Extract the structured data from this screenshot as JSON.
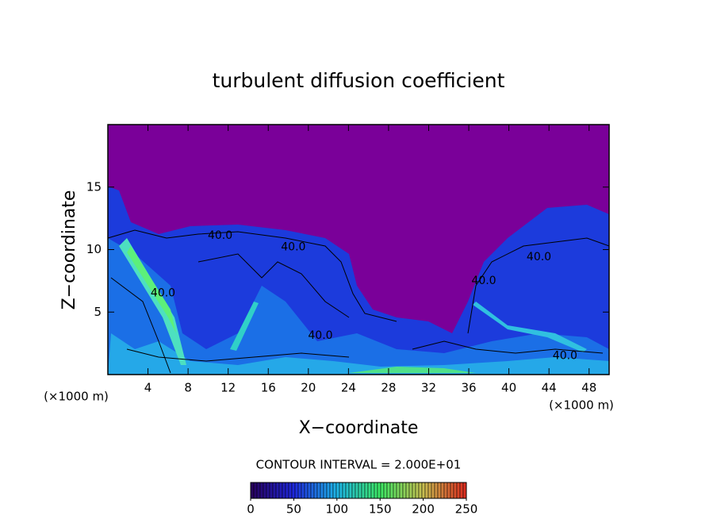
{
  "chart_data": {
    "type": "contour",
    "title": "turbulent diffusion coefficient",
    "xlabel": "X−coordinate",
    "ylabel": "Z−coordinate",
    "xunit": "(×1000 m)",
    "yunit": "(×1000 m)",
    "xlim": [
      0,
      50
    ],
    "ylim": [
      0,
      20
    ],
    "xticks": [
      4,
      8,
      12,
      16,
      20,
      24,
      28,
      32,
      36,
      40,
      44,
      48
    ],
    "yticks": [
      5,
      10,
      15
    ],
    "contour_interval": "CONTOUR INTERVAL = 2.000E+01",
    "clim": [
      0,
      250
    ],
    "cticks": [
      0,
      50,
      100,
      150,
      200,
      250
    ],
    "contour_labels": [
      {
        "text": "40.0",
        "x": 11.2,
        "y": 11.1
      },
      {
        "text": "40.0",
        "x": 18.5,
        "y": 10.2
      },
      {
        "text": "40.0",
        "x": 43.0,
        "y": 9.4
      },
      {
        "text": "40.0",
        "x": 21.2,
        "y": 3.1
      },
      {
        "text": "40.0",
        "x": 45.6,
        "y": 1.5
      },
      {
        "text": "40.0",
        "x": 5.5,
        "y": 6.5
      },
      {
        "text": "40.0",
        "x": 37.5,
        "y": 7.5
      }
    ]
  }
}
